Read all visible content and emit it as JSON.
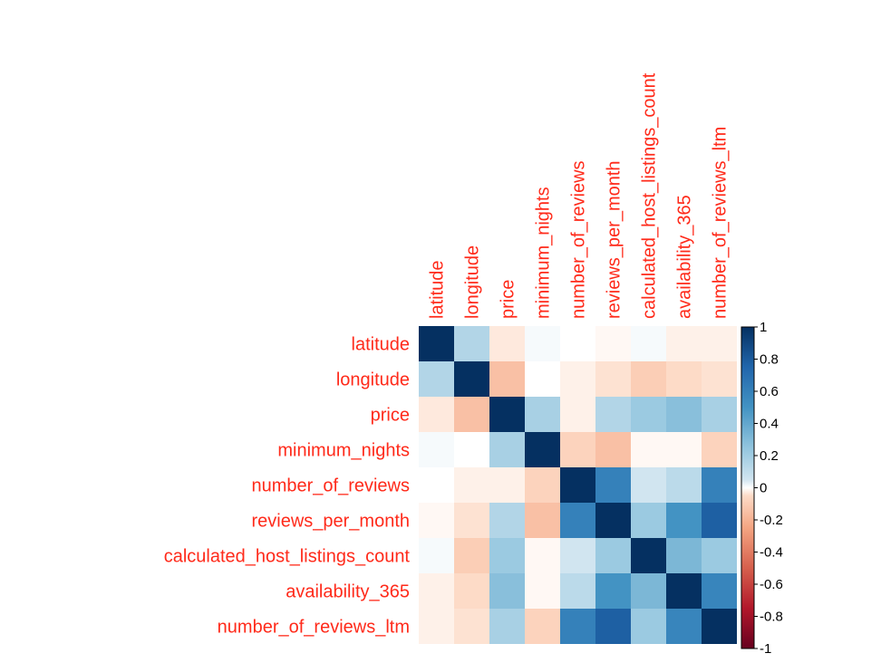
{
  "chart_data": {
    "type": "heatmap",
    "title": "",
    "variables": [
      "latitude",
      "longitude",
      "price",
      "minimum_nights",
      "number_of_reviews",
      "reviews_per_month",
      "calculated_host_listings_count",
      "availability_365",
      "number_of_reviews_ltm"
    ],
    "matrix": [
      [
        1.0,
        0.15,
        -0.03,
        0.01,
        0.0,
        -0.01,
        0.01,
        -0.02,
        -0.02
      ],
      [
        0.15,
        1.0,
        -0.15,
        0.0,
        -0.02,
        -0.04,
        -0.1,
        -0.05,
        -0.04
      ],
      [
        -0.03,
        -0.15,
        1.0,
        0.18,
        -0.02,
        0.15,
        0.22,
        0.28,
        0.18
      ],
      [
        0.01,
        0.0,
        0.18,
        1.0,
        -0.08,
        -0.15,
        -0.01,
        -0.01,
        -0.08
      ],
      [
        0.0,
        -0.02,
        -0.02,
        -0.08,
        1.0,
        0.6,
        0.05,
        0.12,
        0.6
      ],
      [
        -0.01,
        -0.04,
        0.15,
        -0.15,
        0.6,
        1.0,
        0.22,
        0.5,
        0.78
      ],
      [
        0.01,
        -0.1,
        0.22,
        -0.01,
        0.05,
        0.22,
        1.0,
        0.32,
        0.22
      ],
      [
        -0.02,
        -0.05,
        0.28,
        -0.01,
        0.12,
        0.5,
        0.32,
        1.0,
        0.58
      ],
      [
        -0.02,
        -0.04,
        0.18,
        -0.08,
        0.6,
        0.78,
        0.22,
        0.58,
        1.0
      ]
    ],
    "color_scale": {
      "min": -1,
      "max": 1,
      "low_color": "#67001f",
      "mid_color": "#ffffff",
      "high_color": "#053061"
    },
    "legend_ticks": [
      "1",
      "0.8",
      "0.6",
      "0.4",
      "0.2",
      "0",
      "-0.2",
      "-0.4",
      "-0.6",
      "-0.8",
      "-1"
    ],
    "legend_placement": "right",
    "label_color": "#ff2a1a"
  }
}
